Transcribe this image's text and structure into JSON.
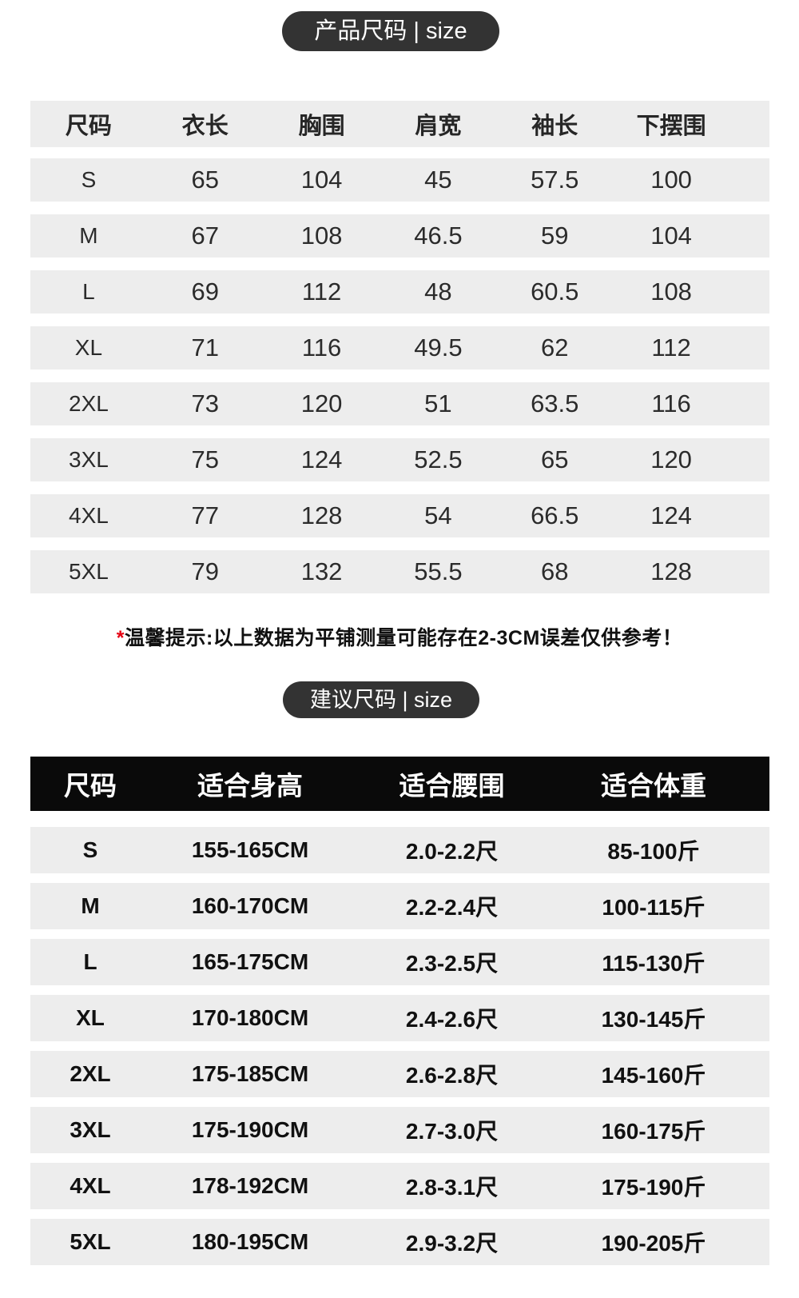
{
  "product_size_section": {
    "badge_label": "产品尺码 | size",
    "table": {
      "headers": [
        "尺码",
        "衣长",
        "胸围",
        "肩宽",
        "袖长",
        "下摆围"
      ],
      "rows": [
        [
          "S",
          "65",
          "104",
          "45",
          "57.5",
          "100"
        ],
        [
          "M",
          "67",
          "108",
          "46.5",
          "59",
          "104"
        ],
        [
          "L",
          "69",
          "112",
          "48",
          "60.5",
          "108"
        ],
        [
          "XL",
          "71",
          "116",
          "49.5",
          "62",
          "112"
        ],
        [
          "2XL",
          "73",
          "120",
          "51",
          "63.5",
          "116"
        ],
        [
          "3XL",
          "75",
          "124",
          "52.5",
          "65",
          "120"
        ],
        [
          "4XL",
          "77",
          "128",
          "54",
          "66.5",
          "124"
        ],
        [
          "5XL",
          "79",
          "132",
          "55.5",
          "68",
          "128"
        ]
      ]
    },
    "note": {
      "star": "*",
      "prefix": "温馨提示:",
      "text": "以上数据为平铺测量可能存在2-3CM误差仅供参考！"
    }
  },
  "suggested_size_section": {
    "badge_label": "建议尺码 | size",
    "table": {
      "headers": [
        "尺码",
        "适合身高",
        "适合腰围",
        "适合体重"
      ],
      "rows": [
        [
          "S",
          "155-165CM",
          "2.0-2.2尺",
          "85-100斤"
        ],
        [
          "M",
          "160-170CM",
          "2.2-2.4尺",
          "100-115斤"
        ],
        [
          "L",
          "165-175CM",
          "2.3-2.5尺",
          "115-130斤"
        ],
        [
          "XL",
          "170-180CM",
          "2.4-2.6尺",
          "130-145斤"
        ],
        [
          "2XL",
          "175-185CM",
          "2.6-2.8尺",
          "145-160斤"
        ],
        [
          "3XL",
          "175-190CM",
          "2.7-3.0尺",
          "160-175斤"
        ],
        [
          "4XL",
          "178-192CM",
          "2.8-3.1尺",
          "175-190斤"
        ],
        [
          "5XL",
          "180-195CM",
          "2.9-3.2尺",
          "190-205斤"
        ]
      ]
    }
  },
  "colors": {
    "badge_bg": "#333333",
    "row_bg": "#ededed",
    "dark_header_bg": "#0a0a0a",
    "note_asterisk": "#e60012",
    "text": "#262626"
  }
}
